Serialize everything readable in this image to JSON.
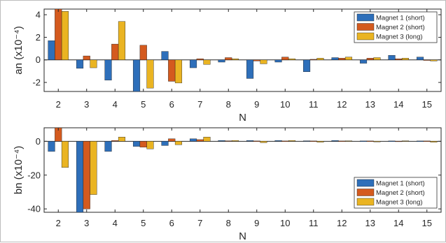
{
  "colors": {
    "series": [
      "#2e6fba",
      "#d45a1e",
      "#eab422"
    ],
    "axis": "#262626",
    "plot_bg": "#ffffff"
  },
  "chart_data": [
    {
      "type": "bar",
      "ylabel": "an (x10⁻⁴)",
      "xlabel": "N",
      "categories": [
        "2",
        "3",
        "4",
        "5",
        "6",
        "7",
        "8",
        "9",
        "10",
        "11",
        "12",
        "13",
        "14",
        "15"
      ],
      "ylim": [
        -2.8,
        4.5
      ],
      "yticks": [
        -2,
        0,
        2,
        4
      ],
      "grid": false,
      "legend_position": "top-right",
      "series": [
        {
          "name": "Magnet 1 (short)",
          "values": [
            1.7,
            -0.75,
            -1.8,
            -2.8,
            0.75,
            -0.7,
            -0.2,
            -1.65,
            -0.2,
            -1.05,
            0.2,
            -0.3,
            0.4,
            0.25
          ]
        },
        {
          "name": "Magnet 2 (short)",
          "values": [
            4.5,
            0.35,
            1.4,
            1.3,
            -1.9,
            0.1,
            0.2,
            -0.1,
            0.25,
            0.05,
            0.15,
            0.15,
            0.1,
            -0.05
          ]
        },
        {
          "name": "Magnet 3 (long)",
          "values": [
            4.3,
            -0.7,
            3.4,
            -2.5,
            -2.05,
            -0.4,
            0.1,
            -0.35,
            0.1,
            0.15,
            0.25,
            0.2,
            0.15,
            -0.1
          ]
        }
      ]
    },
    {
      "type": "bar",
      "ylabel": "bn (x10⁻⁴)",
      "xlabel": "N",
      "categories": [
        "2",
        "3",
        "4",
        "5",
        "6",
        "7",
        "8",
        "9",
        "10",
        "11",
        "12",
        "13",
        "14",
        "15"
      ],
      "ylim": [
        -42,
        8
      ],
      "yticks": [
        -40,
        -20,
        0
      ],
      "grid": false,
      "legend_position": "bottom-right",
      "series": [
        {
          "name": "Magnet 1 (short)",
          "values": [
            -6,
            -42,
            -6,
            -3,
            -2.5,
            1.5,
            0.5,
            0.5,
            0.5,
            0.3,
            0.5,
            0.2,
            0.2,
            0.2
          ]
        },
        {
          "name": "Magnet 2 (short)",
          "values": [
            8,
            -40,
            0.5,
            -3.5,
            1.5,
            1.0,
            0.3,
            0.2,
            0.2,
            0.2,
            0.2,
            0.2,
            0.1,
            0.2
          ]
        },
        {
          "name": "Magnet 3 (long)",
          "values": [
            -15.5,
            -31.5,
            2.5,
            -4.5,
            -2,
            2.5,
            0.5,
            -0.8,
            0.5,
            -0.5,
            0.3,
            -0.3,
            0.3,
            -0.5
          ]
        }
      ]
    }
  ]
}
